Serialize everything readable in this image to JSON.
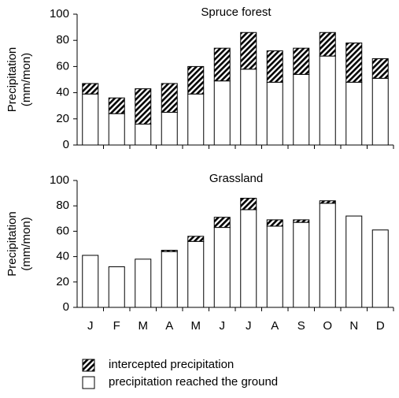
{
  "chart_data": [
    {
      "type": "bar",
      "stacked": true,
      "title": "Spruce forest",
      "ylabel": [
        "Precipitation",
        "(mm/mon)"
      ],
      "categories": [
        null,
        null,
        null,
        null,
        null,
        null,
        null,
        null,
        null,
        null,
        null,
        null
      ],
      "series": [
        {
          "color": "#ffffff",
          "values": [
            39,
            24,
            16,
            25,
            39,
            49,
            58,
            48,
            54,
            68,
            48,
            51
          ]
        },
        {
          "color": "#000000",
          "pattern": "hatch",
          "values": [
            8,
            12,
            27,
            22,
            21,
            25,
            28,
            24,
            20,
            18,
            30,
            15
          ]
        }
      ],
      "ylim": [
        0,
        100
      ],
      "yticks": [
        0,
        20,
        40,
        60,
        80,
        100
      ],
      "grid": false
    },
    {
      "type": "bar",
      "stacked": true,
      "title": "Grassland",
      "ylabel": [
        "Precipitation",
        "(mm/mon)"
      ],
      "categories": [
        "J",
        "F",
        "M",
        "A",
        "M",
        "J",
        "J",
        "A",
        "S",
        "O",
        "N",
        "D"
      ],
      "series": [
        {
          "name": "precipitation reached the ground",
          "color": "#ffffff",
          "values": [
            41,
            32,
            38,
            44,
            52,
            63,
            77,
            64,
            67,
            82,
            72,
            61
          ]
        },
        {
          "name": "intercepted precipitation",
          "color": "#000000",
          "pattern": "hatch",
          "values": [
            0,
            0,
            0,
            1,
            4,
            8,
            9,
            5,
            2,
            2,
            0,
            0
          ]
        }
      ],
      "ylim": [
        0,
        100
      ],
      "yticks": [
        0,
        20,
        40,
        60,
        80,
        100
      ],
      "grid": false
    }
  ]
}
